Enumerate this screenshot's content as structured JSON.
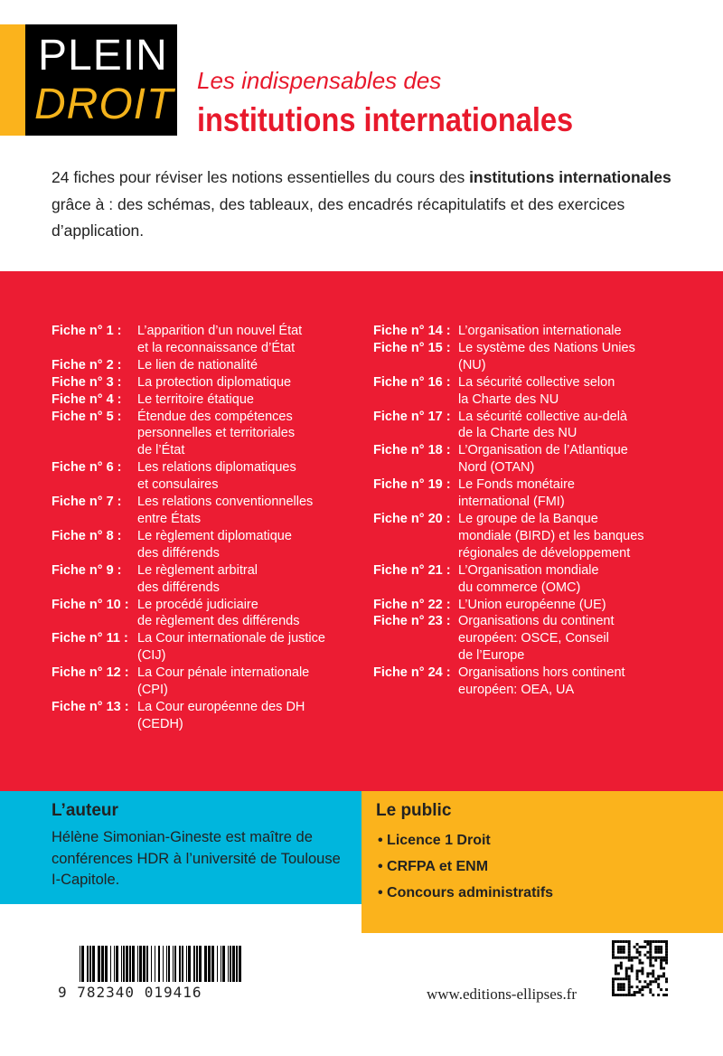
{
  "brand": {
    "line1": "PLEIN",
    "line2": "DROIT",
    "accent": "#fbb31c"
  },
  "header": {
    "subtitle": "Les indispensables des",
    "title": "institutions internationales",
    "title_color": "#e8192c"
  },
  "intro": {
    "p1": "24 fiches pour réviser les notions essentielles du cours des ",
    "b1": "institutions internationales",
    "p2": " grâce à : des schémas, des tableaux, des encadrés récapitulatifs et des exercices d’application."
  },
  "fiches_left": [
    {
      "label": "Fiche n° 1 :",
      "text": "L’apparition d’un nouvel État\net la reconnaissance d’État"
    },
    {
      "label": "Fiche n° 2 :",
      "text": "Le lien de nationalité"
    },
    {
      "label": "Fiche n° 3 :",
      "text": "La protection diplomatique"
    },
    {
      "label": "Fiche n° 4 :",
      "text": "Le territoire étatique"
    },
    {
      "label": "Fiche n° 5 :",
      "text": "Étendue des compétences\npersonnelles et territoriales\nde l’État"
    },
    {
      "label": "Fiche n° 6 :",
      "text": "Les relations diplomatiques\net consulaires"
    },
    {
      "label": "Fiche n° 7 :",
      "text": "Les relations conventionnelles\nentre États"
    },
    {
      "label": "Fiche n° 8 :",
      "text": "Le règlement diplomatique\ndes différends"
    },
    {
      "label": "Fiche n° 9 :",
      "text": "Le règlement arbitral\ndes différends"
    },
    {
      "label": "Fiche n° 10 :",
      "text": "Le procédé judiciaire\nde règlement des différends"
    },
    {
      "label": "Fiche n° 11 :",
      "text": "La Cour internationale de justice\n(CIJ)"
    },
    {
      "label": "Fiche n° 12 :",
      "text": "La Cour pénale internationale\n(CPI)"
    },
    {
      "label": "Fiche n° 13 :",
      "text": "La Cour européenne des DH\n(CEDH)"
    }
  ],
  "fiches_right": [
    {
      "label": "Fiche n° 14 :",
      "text": "L’organisation internationale"
    },
    {
      "label": "Fiche n° 15 :",
      "text": "Le système des Nations Unies\n(NU)"
    },
    {
      "label": "Fiche n° 16 :",
      "text": "La sécurité collective selon\nla Charte des NU"
    },
    {
      "label": "Fiche n° 17 :",
      "text": "La sécurité collective au-delà\nde la Charte des NU"
    },
    {
      "label": "Fiche n° 18 :",
      "text": "L’Organisation de l’Atlantique\nNord (OTAN)"
    },
    {
      "label": "Fiche n° 19 :",
      "text": "Le Fonds monétaire\ninternational (FMI)"
    },
    {
      "label": "Fiche n° 20 :",
      "text": "Le groupe de la Banque\nmondiale (BIRD) et les banques\nrégionales de développement"
    },
    {
      "label": "Fiche n° 21 :",
      "text": "L’Organisation mondiale\ndu commerce (OMC)"
    },
    {
      "label": "Fiche n° 22 :",
      "text": "L’Union européenne (UE)"
    },
    {
      "label": "Fiche n° 23 :",
      "text": "Organisations du continent\neuropéen: OSCE, Conseil\nde l’Europe"
    },
    {
      "label": "Fiche n° 24 :",
      "text": "Organisations hors continent\neuropéen: OEA, UA"
    }
  ],
  "author": {
    "heading": "L’auteur",
    "text": "Hélène Simonian-Gineste est maître de conférences HDR à l’université de Toulouse I-Capitole."
  },
  "public": {
    "heading": "Le public",
    "items": [
      "Licence 1 Droit",
      "CRFPA et ENM",
      "Concours administratifs"
    ]
  },
  "isbn": "9 782340 019416",
  "url": "www.editions-ellipses.fr",
  "colors": {
    "red": "#ec1c33",
    "blue": "#00b6dd",
    "yellow": "#fbb31c"
  }
}
